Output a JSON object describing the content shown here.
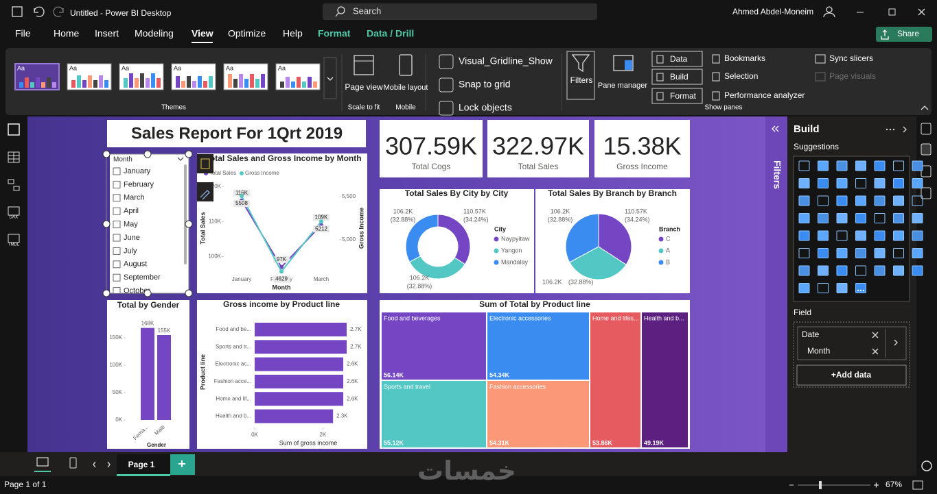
{
  "window": {
    "title": "Untitled - Power BI Desktop",
    "search": "Search",
    "user": "Ahmed Abdel-Moneim"
  },
  "menu": {
    "tabs": [
      "File",
      "Home",
      "Insert",
      "Modeling",
      "View",
      "Optimize",
      "Help",
      "Format",
      "Data / Drill"
    ],
    "share": "Share"
  },
  "ribbon": {
    "theme_sample": "Aa",
    "themes": "Themes",
    "page_view": "Page view",
    "scale_to_fit": "Scale to fit",
    "mobile_layout": "Mobile layout",
    "mobile": "Mobile",
    "checks": [
      "Visual_Gridline_Show",
      "Snap to grid",
      "Lock objects"
    ],
    "filters": "Filters",
    "pane_manager": "Pane manager",
    "panes": [
      "Data",
      "Build",
      "Format"
    ],
    "show_panes": "Show panes",
    "pane_links": [
      "Bookmarks",
      "Selection",
      "Performance analyzer"
    ],
    "sync_slicers": "Sync slicers",
    "page_visuals": "Page visuals"
  },
  "nav": [
    "DAX",
    "TMDL"
  ],
  "report": {
    "title": "Sales Report For 1Qrt 2019",
    "slicer": {
      "header": "Month",
      "items": [
        "January",
        "February",
        "March",
        "April",
        "May",
        "June",
        "July",
        "August",
        "September",
        "October"
      ]
    },
    "kpis": [
      {
        "value": "307.59K",
        "label": "Total Cogs"
      },
      {
        "value": "322.97K",
        "label": "Total Sales"
      },
      {
        "value": "15.38K",
        "label": "Gross Income"
      }
    ],
    "line_chart": {
      "type": "line",
      "title": "Total Sales and Gross Income by Month",
      "categories": [
        "January",
        "February",
        "March"
      ],
      "series": [
        {
          "name": "Total Sales",
          "color": "#7446c4",
          "values": [
            116000,
            97000,
            109000
          ],
          "value_labels": [
            "116K",
            "97K",
            "109K"
          ]
        },
        {
          "name": "Gross Income",
          "color": "#52c7c4",
          "axis": "y2",
          "values": [
            5508,
            4629,
            5212
          ]
        }
      ],
      "ylim": [
        95000,
        122000
      ],
      "yticks": [
        {
          "value": 100000,
          "label": "100K"
        },
        {
          "value": 110000,
          "label": "110K"
        },
        {
          "value": 120000,
          "label": "120K"
        }
      ],
      "y2lim": [
        4600,
        5700
      ],
      "y2ticks": [
        {
          "value": 5000,
          "label": "5,000"
        },
        {
          "value": 5500,
          "label": "5,500"
        }
      ],
      "x_label": "Month",
      "y_label": "Total Sales",
      "y2_label": "Gross Income"
    },
    "donut": {
      "type": "donut",
      "title": "Total Sales By City by City",
      "legend_title": "City",
      "categories": [
        "Naypyitaw",
        "Yangon",
        "Mandalay"
      ],
      "values": [
        110570,
        106200,
        106200
      ],
      "value_labels": [
        "110.57K",
        "106.2K",
        "106.2K"
      ],
      "percent_labels": [
        "(34.24%)",
        "(32.88%)",
        "(32.88%)"
      ],
      "colors": [
        "#7446c4",
        "#52c7c4",
        "#3b8cf0"
      ]
    },
    "pie": {
      "type": "pie",
      "title": "Total Sales By Branch by Branch",
      "legend_title": "Branch",
      "categories": [
        "C",
        "A",
        "B"
      ],
      "values": [
        110570,
        106200,
        106200
      ],
      "value_labels": [
        "110.57K",
        "106.2K",
        "106.2K"
      ],
      "percent_labels": [
        "(34.24%)",
        "(32.88%)",
        "(32.88%)"
      ],
      "colors": [
        "#7446c4",
        "#52c7c4",
        "#3b8cf0"
      ]
    },
    "gender": {
      "type": "bar",
      "title": "Total by Gender",
      "categories": [
        "Fema...",
        "Male"
      ],
      "values": [
        168000,
        155000
      ],
      "value_labels": [
        "168K",
        "155K"
      ],
      "color": "#7446c4",
      "ylim": [
        0,
        175000
      ],
      "yticks": [
        {
          "value": 0,
          "label": "0K"
        },
        {
          "value": 50000,
          "label": "50K"
        },
        {
          "value": 100000,
          "label": "100K"
        },
        {
          "value": 150000,
          "label": "150K"
        }
      ],
      "x_label": "Gender"
    },
    "product": {
      "type": "hbar",
      "title": "Gross income by Product line",
      "categories": [
        "Food and be...",
        "Sports and tr...",
        "Electronic ac...",
        "Fashion acce...",
        "Home and lif...",
        "Health and b..."
      ],
      "values": [
        2700,
        2700,
        2600,
        2600,
        2600,
        2300
      ],
      "value_labels": [
        "2.7K",
        "2.7K",
        "2.6K",
        "2.6K",
        "2.6K",
        "2.3K"
      ],
      "color": "#7446c4",
      "xlim": [
        0,
        2800
      ],
      "xticks": [
        {
          "value": 0,
          "label": "0K"
        },
        {
          "value": 2000,
          "label": "2K"
        }
      ],
      "x_label": "Sum of gross income",
      "y_label": "Product line"
    },
    "treemap": {
      "type": "treemap",
      "title": "Sum of Total by Product line",
      "categories": [
        "Food and beverages",
        "Electronic accessories",
        "Sports and travel",
        "Fashion accessories",
        "Home and lifes...",
        "Health and b..."
      ],
      "values": [
        56140,
        54340,
        55120,
        54310,
        53860,
        49190
      ],
      "value_labels": [
        "56.14K",
        "54.34K",
        "55.12K",
        "54.31K",
        "53.86K",
        "49.19K"
      ],
      "colors": [
        "#7446c4",
        "#3b8cf0",
        "#52c7c4",
        "#fa9878",
        "#e55b5f",
        "#5b2080"
      ]
    }
  },
  "filters_pane": "Filters",
  "build_pane": {
    "title": "Build",
    "suggestions": "Suggestions",
    "field": "Field",
    "fields": [
      "Date",
      "Month"
    ],
    "add_data": "+Add data"
  },
  "footer": {
    "page_tab": "Page 1",
    "status": "Page 1 of 1",
    "zoom": "67%",
    "watermark": "خمسات"
  }
}
